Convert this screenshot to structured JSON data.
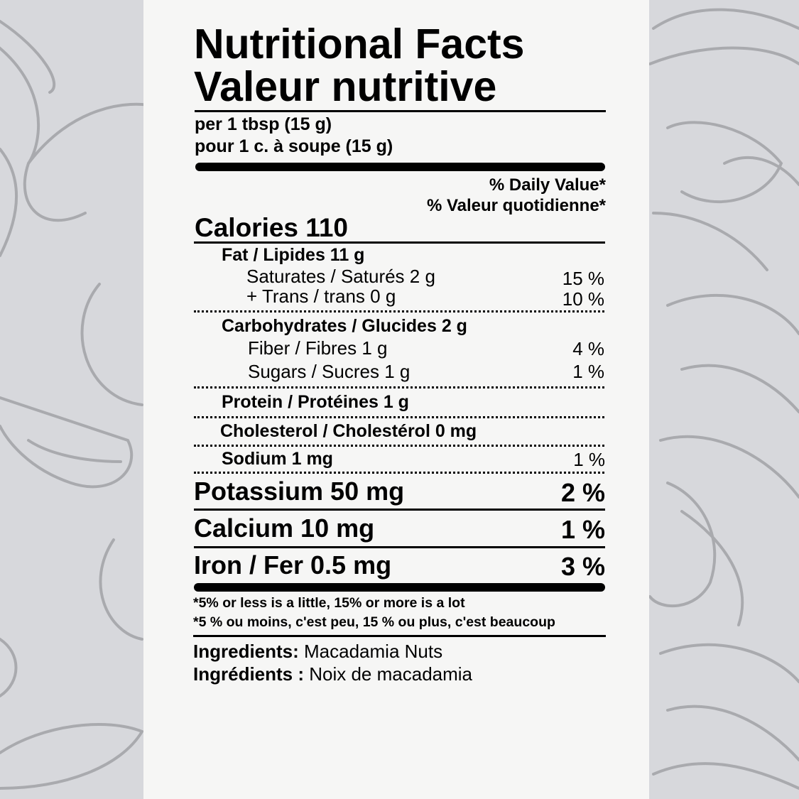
{
  "colors": {
    "background": "#d7d8dc",
    "panel": "#f6f6f5",
    "illustration_stroke": "#a9aaae",
    "text": "#000000"
  },
  "background_illustration": "nut-line-drawings",
  "title": {
    "en": "Nutritional Facts",
    "fr": "Valeur nutritive"
  },
  "serving": {
    "en": "per 1 tbsp (15 g)",
    "fr": "pour 1 c. à soupe (15 g)"
  },
  "daily_value_header": {
    "en": "% Daily Value*",
    "fr": "% Valeur quotidienne*"
  },
  "calories": "Calories 110",
  "nutrients": {
    "fat": {
      "label": "Fat / Lipides 11 g"
    },
    "saturates": {
      "label": "Saturates / Saturés 2 g",
      "dv": "15 %"
    },
    "trans": {
      "label": "+ Trans / trans 0 g",
      "dv": "10 %"
    },
    "carbs": {
      "label": "Carbohydrates / Glucides 2 g"
    },
    "fiber": {
      "label": "Fiber / Fibres 1 g",
      "dv": "4 %"
    },
    "sugars": {
      "label": "Sugars / Sucres 1 g",
      "dv": "1 %"
    },
    "protein": {
      "label": "Protein / Protéines 1 g"
    },
    "cholesterol": {
      "label": "Cholesterol / Cholestérol 0 mg"
    },
    "sodium": {
      "label": "Sodium 1 mg",
      "dv": "1 %"
    },
    "potassium": {
      "label": "Potassium 50 mg",
      "dv": "2 %"
    },
    "calcium": {
      "label": "Calcium 10 mg",
      "dv": "1 %"
    },
    "iron": {
      "label": "Iron / Fer 0.5 mg",
      "dv": "3 %"
    }
  },
  "footnote": {
    "en": "*5% or less is a little, 15% or more is a lot",
    "fr": "*5 % ou moins, c'est peu, 15 % ou plus, c'est beaucoup"
  },
  "ingredients": {
    "en_label": "Ingredients:",
    "en_value": " Macadamia Nuts",
    "fr_label": "Ingrédients :",
    "fr_value": " Noix de macadamia"
  }
}
